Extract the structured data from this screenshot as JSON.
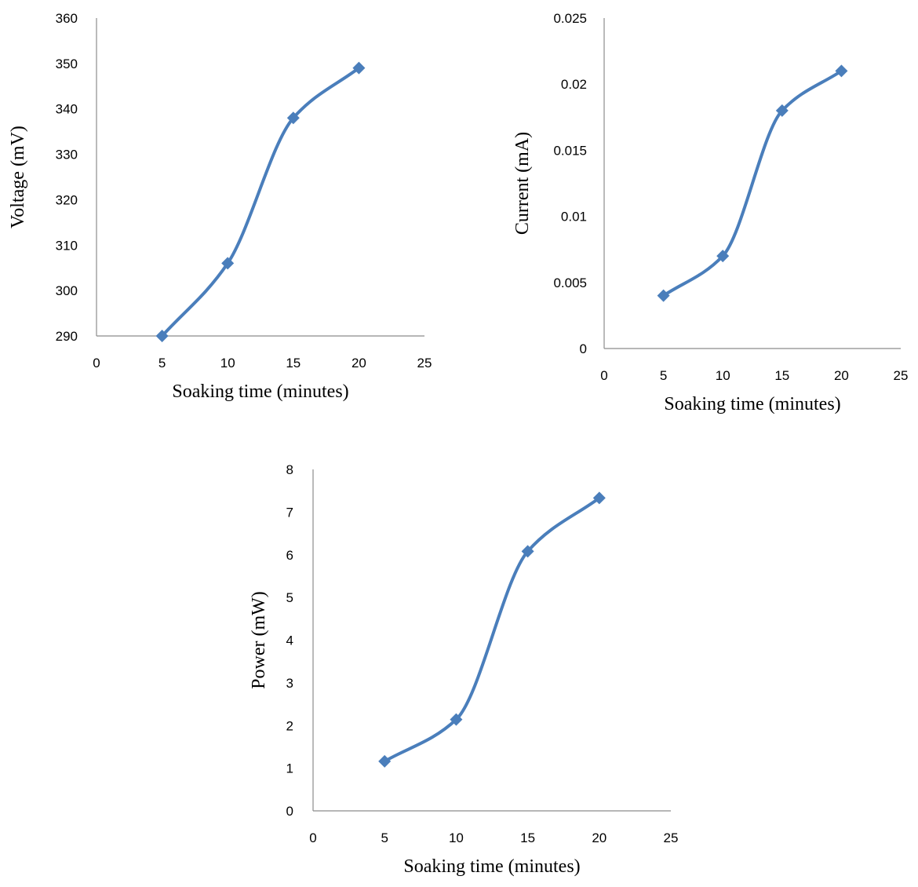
{
  "chart_data": [
    {
      "type": "scatter",
      "xlabel": "Soaking time (minutes)",
      "ylabel": "Voltage (mV)",
      "xlim": [
        0,
        25
      ],
      "ylim": [
        290,
        360
      ],
      "xticks": [
        "0",
        "5",
        "10",
        "15",
        "20",
        "25"
      ],
      "yticks": [
        "290",
        "300",
        "310",
        "320",
        "330",
        "340",
        "350",
        "360"
      ],
      "grid": false,
      "smooth_line": true,
      "series": [
        {
          "x": [
            5,
            10,
            15,
            20
          ],
          "y": [
            290,
            306,
            338,
            349
          ]
        }
      ]
    },
    {
      "type": "scatter",
      "xlabel": "Soaking time (minutes)",
      "ylabel": "Current (mA)",
      "xlim": [
        0,
        25
      ],
      "ylim": [
        0,
        0.025
      ],
      "xticks": [
        "0",
        "5",
        "10",
        "15",
        "20",
        "25"
      ],
      "yticks": [
        "0",
        "0.005",
        "0.01",
        "0.015",
        "0.02",
        "0.025"
      ],
      "grid": false,
      "smooth_line": true,
      "series": [
        {
          "x": [
            5,
            10,
            15,
            20
          ],
          "y": [
            0.004,
            0.007,
            0.018,
            0.021
          ]
        }
      ]
    },
    {
      "type": "scatter",
      "xlabel": "Soaking time (minutes)",
      "ylabel": "Power (mW)",
      "xlim": [
        0,
        25
      ],
      "ylim": [
        0,
        8
      ],
      "xticks": [
        "0",
        "5",
        "10",
        "15",
        "20",
        "25"
      ],
      "yticks": [
        "0",
        "1",
        "2",
        "3",
        "4",
        "5",
        "6",
        "7",
        "8"
      ],
      "grid": false,
      "smooth_line": true,
      "series": [
        {
          "x": [
            5,
            10,
            15,
            20
          ],
          "y": [
            1.16,
            2.14,
            6.08,
            7.33
          ]
        }
      ]
    }
  ],
  "colors": {
    "series": "#4a7ebb",
    "axis": "#8c8c8c",
    "text": "#000000"
  }
}
